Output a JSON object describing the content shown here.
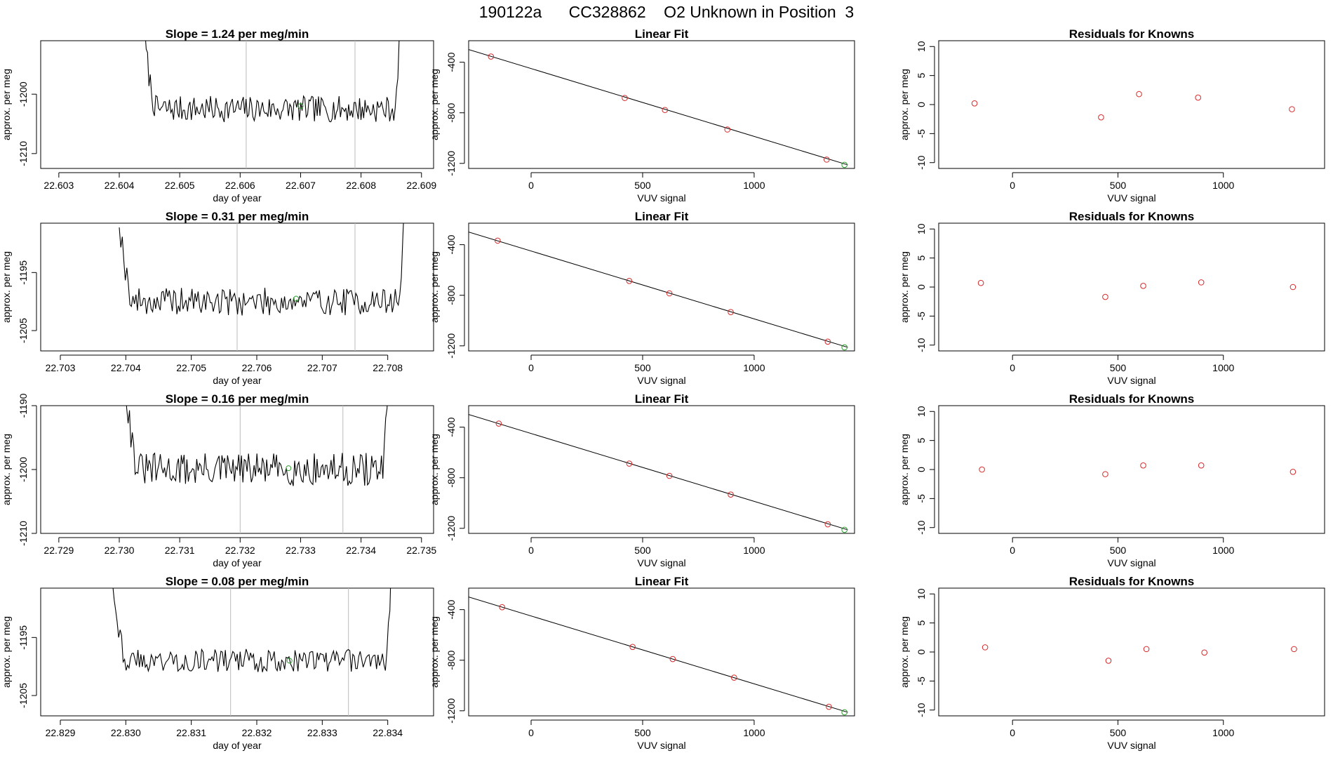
{
  "figure": {
    "title": "190122a      CC328862    O2 Unknown in Position  3"
  },
  "styles": {
    "line_color": "#000000",
    "known_point_color": "#d62728",
    "unknown_point_color": "#2ca02c",
    "marker_line_color": "#bbbbbb",
    "frame_color": "#000000"
  },
  "chart_data": [
    {
      "type": "line",
      "panel": "trace",
      "row": 1,
      "title": "Slope =  1.24  per meg/min",
      "xlabel": "day of year",
      "ylabel": "approx. per meg",
      "xlim": [
        22.6027,
        22.6092
      ],
      "ylim": [
        -1212.5,
        -1191
      ],
      "xticks": [
        "22.603",
        "22.604",
        "22.605",
        "22.606",
        "22.607",
        "22.608",
        "22.609"
      ],
      "yticks": [
        "-1200",
        "-1210"
      ],
      "trace_start": 22.6044,
      "trace_end": 22.6087,
      "baseline": -1202.5,
      "noise": 2.2,
      "seed": 7,
      "vertical_markers": [
        22.6061,
        22.6079
      ],
      "unknown_point": {
        "x": 22.607,
        "y": -1202
      }
    },
    {
      "type": "scatter",
      "panel": "fit",
      "row": 1,
      "title": "Linear Fit",
      "xlabel": "VUV signal",
      "ylabel": "approx. per meg",
      "xlim": [
        -280,
        1450
      ],
      "ylim": [
        -1240,
        -230
      ],
      "xticks": [
        "0",
        "500",
        "1000"
      ],
      "yticks": [
        "-400",
        "-800",
        "-1200"
      ],
      "line": {
        "x": [
          -280,
          1420
        ],
        "y": [
          -300,
          -1212
        ]
      },
      "known": [
        {
          "x": -180,
          "y": -355
        },
        {
          "x": 420,
          "y": -683
        },
        {
          "x": 600,
          "y": -778
        },
        {
          "x": 880,
          "y": -932
        },
        {
          "x": 1325,
          "y": -1170
        }
      ],
      "unknown": {
        "x": 1405,
        "y": -1212
      }
    },
    {
      "type": "scatter",
      "panel": "residuals",
      "row": 1,
      "title": "Residuals for Knowns",
      "xlabel": "VUV signal",
      "ylabel": "approx. per meg",
      "xlim": [
        -350,
        1480
      ],
      "ylim": [
        -11,
        11
      ],
      "xticks": [
        "0",
        "500",
        "1000"
      ],
      "yticks": [
        "10",
        "5",
        "0",
        "-5",
        "-10"
      ],
      "points": [
        {
          "x": -180,
          "y": 0.2
        },
        {
          "x": 420,
          "y": -2.2
        },
        {
          "x": 600,
          "y": 1.8
        },
        {
          "x": 880,
          "y": 1.2
        },
        {
          "x": 1325,
          "y": -0.8
        }
      ]
    },
    {
      "type": "line",
      "panel": "trace",
      "row": 2,
      "title": "Slope =  0.31  per meg/min",
      "xlabel": "day of year",
      "ylabel": "approx. per meg",
      "xlim": [
        22.7027,
        22.7087
      ],
      "ylim": [
        -1208.5,
        -1186.5
      ],
      "xticks": [
        "22.703",
        "22.704",
        "22.705",
        "22.706",
        "22.707",
        "22.708"
      ],
      "yticks": [
        "-1195",
        "-1205"
      ],
      "trace_start": 22.7039,
      "trace_end": 22.7083,
      "baseline": -1200,
      "noise": 2.4,
      "seed": 19,
      "vertical_markers": [
        22.7057,
        22.7075
      ],
      "unknown_point": {
        "x": 22.7066,
        "y": -1199.5
      }
    },
    {
      "type": "scatter",
      "panel": "fit",
      "row": 2,
      "title": "Linear Fit",
      "xlabel": "VUV signal",
      "ylabel": "approx. per meg",
      "xlim": [
        -280,
        1450
      ],
      "ylim": [
        -1240,
        -230
      ],
      "xticks": [
        "0",
        "500",
        "1000"
      ],
      "yticks": [
        "-400",
        "-800",
        "-1200"
      ],
      "line": {
        "x": [
          -280,
          1420
        ],
        "y": [
          -300,
          -1212
        ]
      },
      "known": [
        {
          "x": -150,
          "y": -368
        },
        {
          "x": 440,
          "y": -687
        },
        {
          "x": 620,
          "y": -785
        },
        {
          "x": 895,
          "y": -933
        },
        {
          "x": 1330,
          "y": -1167
        }
      ],
      "unknown": {
        "x": 1405,
        "y": -1212
      }
    },
    {
      "type": "scatter",
      "panel": "residuals",
      "row": 2,
      "title": "Residuals for Knowns",
      "xlabel": "VUV signal",
      "ylabel": "approx. per meg",
      "xlim": [
        -350,
        1480
      ],
      "ylim": [
        -11,
        11
      ],
      "xticks": [
        "0",
        "500",
        "1000"
      ],
      "yticks": [
        "10",
        "5",
        "0",
        "-5",
        "-10"
      ],
      "points": [
        {
          "x": -150,
          "y": 0.7
        },
        {
          "x": 440,
          "y": -1.7
        },
        {
          "x": 620,
          "y": 0.2
        },
        {
          "x": 895,
          "y": 0.8
        },
        {
          "x": 1330,
          "y": 0.0
        }
      ]
    },
    {
      "type": "line",
      "panel": "trace",
      "row": 3,
      "title": "Slope =  0.16  per meg/min",
      "xlabel": "day of year",
      "ylabel": "approx. per meg",
      "xlim": [
        22.7287,
        22.7352
      ],
      "ylim": [
        -1210,
        -1190
      ],
      "xticks": [
        "22.729",
        "22.730",
        "22.731",
        "22.732",
        "22.733",
        "22.734",
        "22.735"
      ],
      "yticks": [
        "-1190",
        "-1200",
        "-1210"
      ],
      "trace_start": 22.7301,
      "trace_end": 22.7345,
      "baseline": -1200,
      "noise": 2.6,
      "seed": 31,
      "vertical_markers": [
        22.732,
        22.7337
      ],
      "unknown_point": {
        "x": 22.7328,
        "y": -1199.8
      }
    },
    {
      "type": "scatter",
      "panel": "fit",
      "row": 3,
      "title": "Linear Fit",
      "xlabel": "VUV signal",
      "ylabel": "approx. per meg",
      "xlim": [
        -280,
        1450
      ],
      "ylim": [
        -1240,
        -230
      ],
      "xticks": [
        "0",
        "500",
        "1000"
      ],
      "yticks": [
        "-400",
        "-800",
        "-1200"
      ],
      "line": {
        "x": [
          -280,
          1420
        ],
        "y": [
          -300,
          -1212
        ]
      },
      "known": [
        {
          "x": -145,
          "y": -372
        },
        {
          "x": 440,
          "y": -688
        },
        {
          "x": 620,
          "y": -785
        },
        {
          "x": 895,
          "y": -933
        },
        {
          "x": 1330,
          "y": -1168
        }
      ],
      "unknown": {
        "x": 1405,
        "y": -1212
      }
    },
    {
      "type": "scatter",
      "panel": "residuals",
      "row": 3,
      "title": "Residuals for Knowns",
      "xlabel": "VUV signal",
      "ylabel": "approx. per meg",
      "xlim": [
        -350,
        1480
      ],
      "ylim": [
        -11,
        11
      ],
      "xticks": [
        "0",
        "500",
        "1000"
      ],
      "yticks": [
        "10",
        "5",
        "0",
        "-5",
        "-10"
      ],
      "points": [
        {
          "x": -145,
          "y": 0.0
        },
        {
          "x": 440,
          "y": -0.8
        },
        {
          "x": 620,
          "y": 0.7
        },
        {
          "x": 895,
          "y": 0.7
        },
        {
          "x": 1330,
          "y": -0.4
        }
      ]
    },
    {
      "type": "line",
      "panel": "trace",
      "row": 4,
      "title": "Slope =  0.08  per meg/min",
      "xlabel": "day of year",
      "ylabel": "approx. per meg",
      "xlim": [
        22.8287,
        22.8347
      ],
      "ylim": [
        -1208.5,
        -1186.5
      ],
      "xticks": [
        "22.829",
        "22.830",
        "22.831",
        "22.832",
        "22.833",
        "22.834"
      ],
      "yticks": [
        "-1195",
        "-1205"
      ],
      "trace_start": 22.8298,
      "trace_end": 22.8341,
      "baseline": -1199,
      "noise": 2.0,
      "seed": 43,
      "vertical_markers": [
        22.8316,
        22.8334
      ],
      "unknown_point": {
        "x": 22.8325,
        "y": -1199
      }
    },
    {
      "type": "scatter",
      "panel": "fit",
      "row": 4,
      "title": "Linear Fit",
      "xlabel": "VUV signal",
      "ylabel": "approx. per meg",
      "xlim": [
        -280,
        1450
      ],
      "ylim": [
        -1240,
        -230
      ],
      "xticks": [
        "0",
        "500",
        "1000"
      ],
      "yticks": [
        "-400",
        "-800",
        "-1200"
      ],
      "line": {
        "x": [
          -280,
          1420
        ],
        "y": [
          -300,
          -1212
        ]
      },
      "known": [
        {
          "x": -130,
          "y": -381
        },
        {
          "x": 455,
          "y": -695
        },
        {
          "x": 635,
          "y": -791
        },
        {
          "x": 910,
          "y": -938
        },
        {
          "x": 1335,
          "y": -1168
        }
      ],
      "unknown": {
        "x": 1405,
        "y": -1212
      }
    },
    {
      "type": "scatter",
      "panel": "residuals",
      "row": 4,
      "title": "Residuals for Knowns",
      "xlabel": "VUV signal",
      "ylabel": "approx. per meg",
      "xlim": [
        -350,
        1480
      ],
      "ylim": [
        -11,
        11
      ],
      "xticks": [
        "0",
        "500",
        "1000"
      ],
      "yticks": [
        "10",
        "5",
        "0",
        "-5",
        "-10"
      ],
      "points": [
        {
          "x": -130,
          "y": 0.8
        },
        {
          "x": 455,
          "y": -1.5
        },
        {
          "x": 635,
          "y": 0.5
        },
        {
          "x": 910,
          "y": -0.1
        },
        {
          "x": 1335,
          "y": 0.5
        }
      ]
    }
  ]
}
